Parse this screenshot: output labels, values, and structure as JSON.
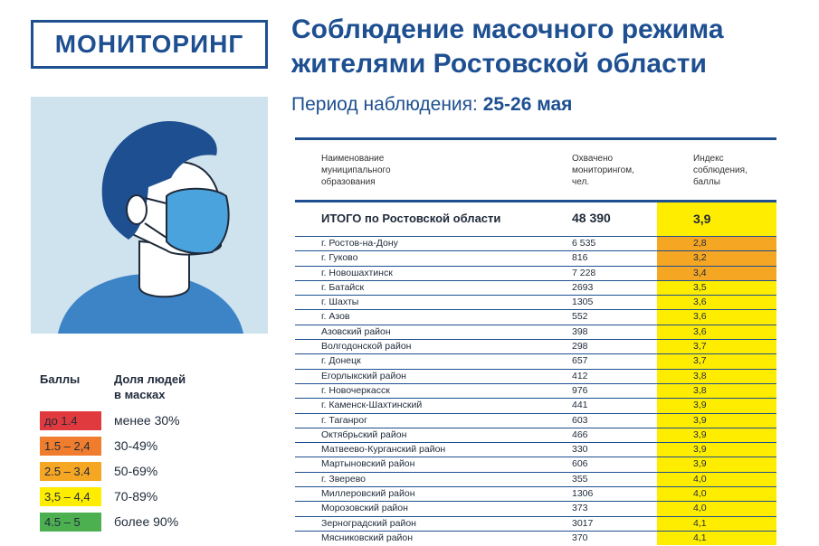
{
  "logo": {
    "label": "МОНИТОРИНГ"
  },
  "title": {
    "line1": "Соблюдение масочного режима",
    "line2": "жителями Ростовской области"
  },
  "period": {
    "label": "Период наблюдения:",
    "value": "25-26 мая"
  },
  "colors": {
    "brand": "#1d4f91",
    "red": "#e13a3e",
    "orange": "#ef7d2d",
    "light_orange": "#f5a623",
    "yellow": "#ffed00",
    "green": "#4caf50",
    "illustration_bg": "#cfe3ef"
  },
  "legend": {
    "col_scores": "Баллы",
    "col_share_line1": "Доля людей",
    "col_share_line2": "в масках",
    "items": [
      {
        "range": "до 1.4",
        "share": "менее 30%",
        "color": "#e13a3e"
      },
      {
        "range": "1.5 – 2,4",
        "share": "30-49%",
        "color": "#ef7d2d"
      },
      {
        "range": "2.5 – 3.4",
        "share": "50-69%",
        "color": "#f5a623"
      },
      {
        "range": "3,5 – 4,4",
        "share": "70-89%",
        "color": "#ffed00"
      },
      {
        "range": "4.5 – 5",
        "share": "более 90%",
        "color": "#4caf50"
      }
    ]
  },
  "table": {
    "headers": {
      "name_l1": "Наименование",
      "name_l2": "муниципального",
      "name_l3": "образования",
      "covered_l1": "Охвачено",
      "covered_l2": "мониторингом,",
      "covered_l3": "чел.",
      "index_l1": "Индекс",
      "index_l2": "соблюдения,",
      "index_l3": "баллы"
    },
    "total": {
      "name": "ИТОГО по Ростовской области",
      "covered": "48 390",
      "index": "3,9"
    },
    "rows": [
      {
        "name": "г. Ростов-на-Дону",
        "covered": "6 535",
        "index": "2,8",
        "color": "#f5a623"
      },
      {
        "name": "г. Гуково",
        "covered": "816",
        "index": "3,2",
        "color": "#f5a623"
      },
      {
        "name": "г. Новошахтинск",
        "covered": "7 228",
        "index": "3,4",
        "color": "#f5a623"
      },
      {
        "name": "г. Батайск",
        "covered": "2693",
        "index": "3,5",
        "color": "#ffed00"
      },
      {
        "name": "г. Шахты",
        "covered": "1305",
        "index": "3,6",
        "color": "#ffed00"
      },
      {
        "name": "г. Азов",
        "covered": "552",
        "index": "3,6",
        "color": "#ffed00"
      },
      {
        "name": "Азовский район",
        "covered": "398",
        "index": "3,6",
        "color": "#ffed00"
      },
      {
        "name": "Волгодонской район",
        "covered": "298",
        "index": "3,7",
        "color": "#ffed00"
      },
      {
        "name": "г. Донецк",
        "covered": "657",
        "index": "3,7",
        "color": "#ffed00"
      },
      {
        "name": "Егорлыкский район",
        "covered": "412",
        "index": "3,8",
        "color": "#ffed00"
      },
      {
        "name": "г. Новочеркасск",
        "covered": "976",
        "index": "3,8",
        "color": "#ffed00"
      },
      {
        "name": "г. Каменск-Шахтинский",
        "covered": "441",
        "index": "3,9",
        "color": "#ffed00"
      },
      {
        "name": "г. Таганрог",
        "covered": "603",
        "index": "3,9",
        "color": "#ffed00"
      },
      {
        "name": "Октябрьский район",
        "covered": "466",
        "index": "3,9",
        "color": "#ffed00"
      },
      {
        "name": "Матвеево-Курганский район",
        "covered": "330",
        "index": "3,9",
        "color": "#ffed00"
      },
      {
        "name": "Мартыновский район",
        "covered": "606",
        "index": "3,9",
        "color": "#ffed00"
      },
      {
        "name": "г. Зверево",
        "covered": "355",
        "index": "4,0",
        "color": "#ffed00"
      },
      {
        "name": "Миллеровский район",
        "covered": "1306",
        "index": "4,0",
        "color": "#ffed00"
      },
      {
        "name": "Морозовский район",
        "covered": "373",
        "index": "4,0",
        "color": "#ffed00"
      },
      {
        "name": "Зерноградский район",
        "covered": "3017",
        "index": "4,1",
        "color": "#ffed00"
      },
      {
        "name": "Мясниковский район",
        "covered": "370",
        "index": "4,1",
        "color": "#ffed00"
      }
    ]
  }
}
